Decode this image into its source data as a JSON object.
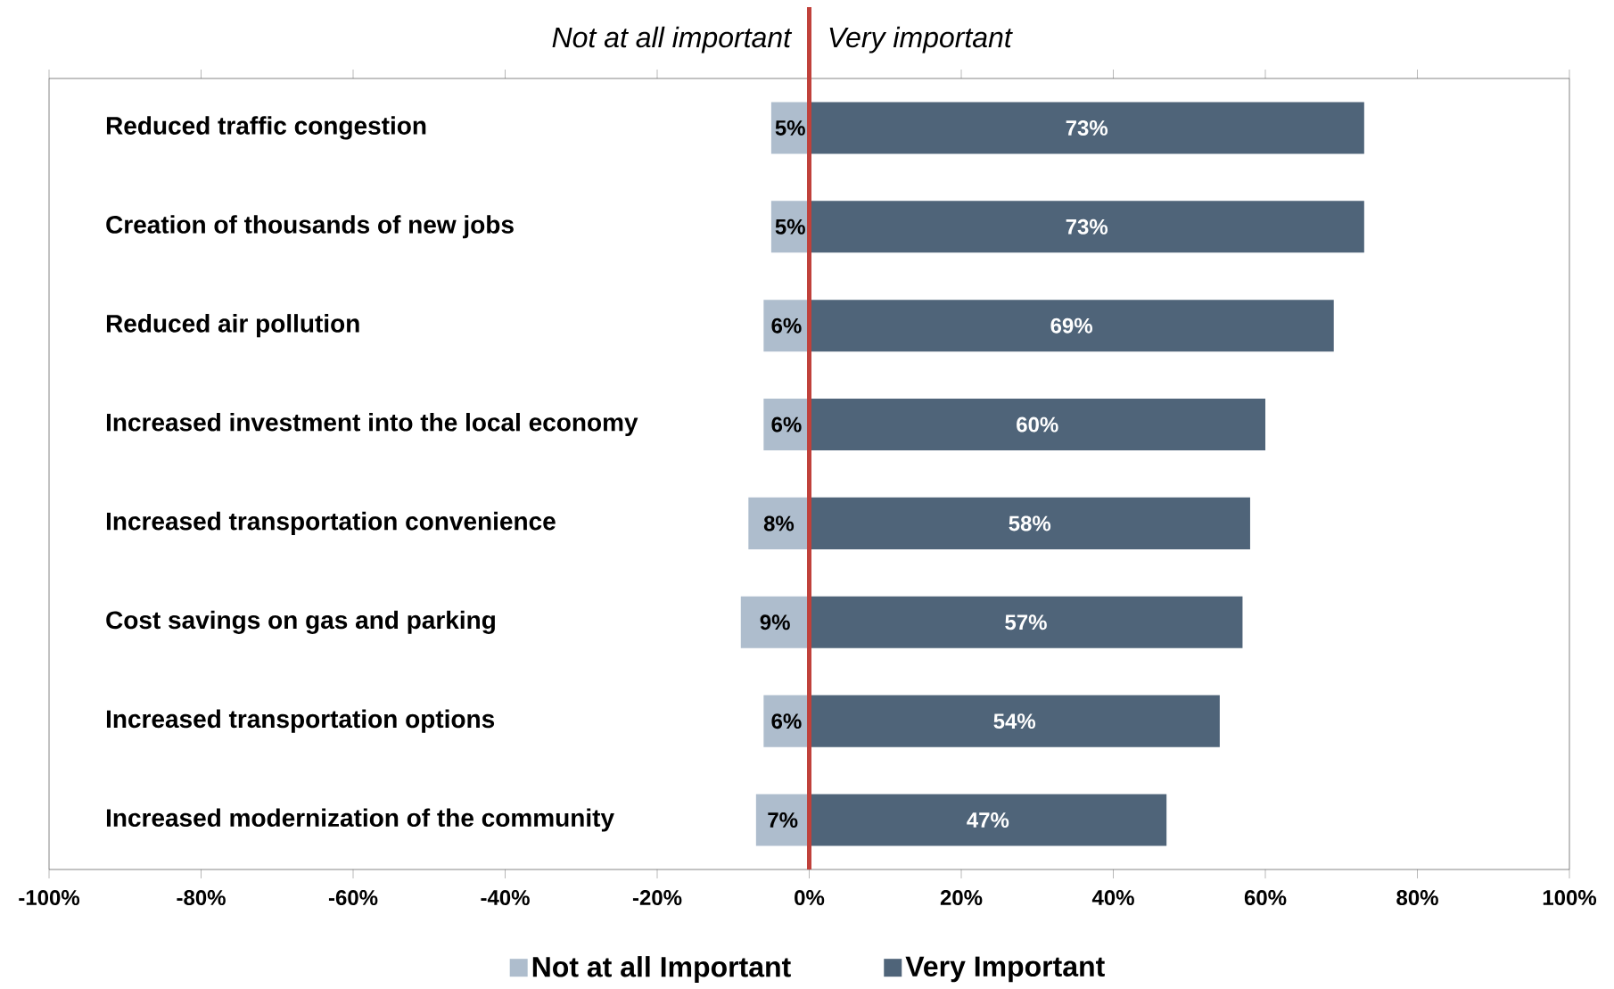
{
  "chart_data": {
    "type": "bar",
    "orientation": "horizontal",
    "categories": [
      "Reduced traffic congestion",
      "Creation of thousands of new jobs",
      "Reduced air pollution",
      "Increased investment into the local economy",
      "Increased transportation convenience",
      "Cost savings on gas and parking",
      "Increased transportation options",
      "Increased modernization of the community"
    ],
    "series": [
      {
        "name": "Not at all Important",
        "color": "#aebdcd",
        "values": [
          5,
          5,
          6,
          6,
          8,
          9,
          6,
          7
        ],
        "base": [
          -5,
          -5,
          -6,
          -6,
          -8,
          -9,
          -6,
          -7
        ],
        "value_labels": [
          "5%",
          "5%",
          "6%",
          "6%",
          "8%",
          "9%",
          "6%",
          "7%"
        ]
      },
      {
        "name": "Very Important",
        "color": "#4f6479",
        "values": [
          73,
          73,
          69,
          60,
          58,
          57,
          54,
          47
        ],
        "value_labels": [
          "73%",
          "73%",
          "69%",
          "60%",
          "58%",
          "57%",
          "54%",
          "47%"
        ]
      }
    ],
    "xlim": [
      -100,
      100
    ],
    "xticks": [
      {
        "value": -100,
        "label": "-100%"
      },
      {
        "value": -80,
        "label": "-80%"
      },
      {
        "value": -60,
        "label": "-60%"
      },
      {
        "value": -40,
        "label": "-40%"
      },
      {
        "value": -20,
        "label": "-20%"
      },
      {
        "value": 0,
        "label": "0%"
      },
      {
        "value": 20,
        "label": "20%"
      },
      {
        "value": 40,
        "label": "40%"
      },
      {
        "value": 60,
        "label": "60%"
      },
      {
        "value": 80,
        "label": "80%"
      },
      {
        "value": 100,
        "label": "100%"
      }
    ],
    "ref_lines": [
      {
        "axis": "x",
        "value": 0,
        "color": "#c0413b"
      }
    ],
    "annotations": [
      "Not at all important",
      "Very important"
    ],
    "legend": "bottom"
  }
}
